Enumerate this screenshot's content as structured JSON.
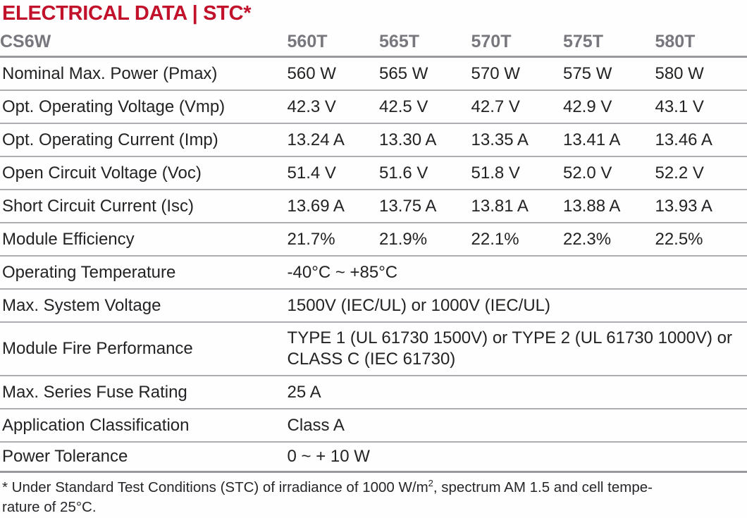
{
  "title": "ELECTRICAL DATA | STC*",
  "table": {
    "series_label": "CS6W",
    "models": [
      "560T",
      "565T",
      "570T",
      "575T",
      "580T"
    ],
    "rows": [
      {
        "label": "Nominal Max. Power (Pmax)",
        "values": [
          "560 W",
          "565 W",
          "570 W",
          "575 W",
          "580 W"
        ]
      },
      {
        "label": "Opt. Operating Voltage (Vmp)",
        "values": [
          "42.3 V",
          "42.5 V",
          "42.7 V",
          "42.9 V",
          "43.1 V"
        ]
      },
      {
        "label": "Opt. Operating Current (Imp)",
        "values": [
          "13.24 A",
          "13.30 A",
          "13.35 A",
          "13.41 A",
          "13.46 A"
        ]
      },
      {
        "label": "Open Circuit Voltage (Voc)",
        "values": [
          "51.4 V",
          "51.6 V",
          "51.8 V",
          "52.0 V",
          "52.2 V"
        ]
      },
      {
        "label": "Short Circuit Current (Isc)",
        "values": [
          "13.69 A",
          "13.75 A",
          "13.81 A",
          "13.88 A",
          "13.93 A"
        ]
      },
      {
        "label": "Module Efficiency",
        "values": [
          "21.7%",
          "21.9%",
          "22.1%",
          "22.3%",
          "22.5%"
        ]
      }
    ],
    "span_rows": [
      {
        "label": "Operating Temperature",
        "value": "-40°C ~ +85°C"
      },
      {
        "label": "Max. System Voltage",
        "value": "1500V (IEC/UL) or 1000V (IEC/UL)"
      },
      {
        "label": "Module Fire Performance",
        "value": "TYPE 1 (UL 61730 1500V) or TYPE 2 (UL 61730 1000V) or CLASS C (IEC 61730)",
        "tall": true
      },
      {
        "label": "Max. Series Fuse Rating",
        "value": "25 A"
      },
      {
        "label": "Application Classification",
        "value": "Class A"
      },
      {
        "label": "Power Tolerance",
        "value": "0 ~ + 10 W",
        "last": true
      }
    ]
  },
  "footnote": {
    "line1_prefix": "* Under Standard Test Conditions (STC) of irradiance of 1000 W/m",
    "superscript": "2",
    "line1_suffix": ", spectrum AM 1.5 and cell tempe-",
    "line2": "rature of 25°C."
  },
  "colors": {
    "title_red": "#C1112B",
    "header_gray": "#77777E",
    "body_text": "#232326",
    "rule_thin": "#ACAEB1",
    "rule_thick": "#97999D"
  }
}
